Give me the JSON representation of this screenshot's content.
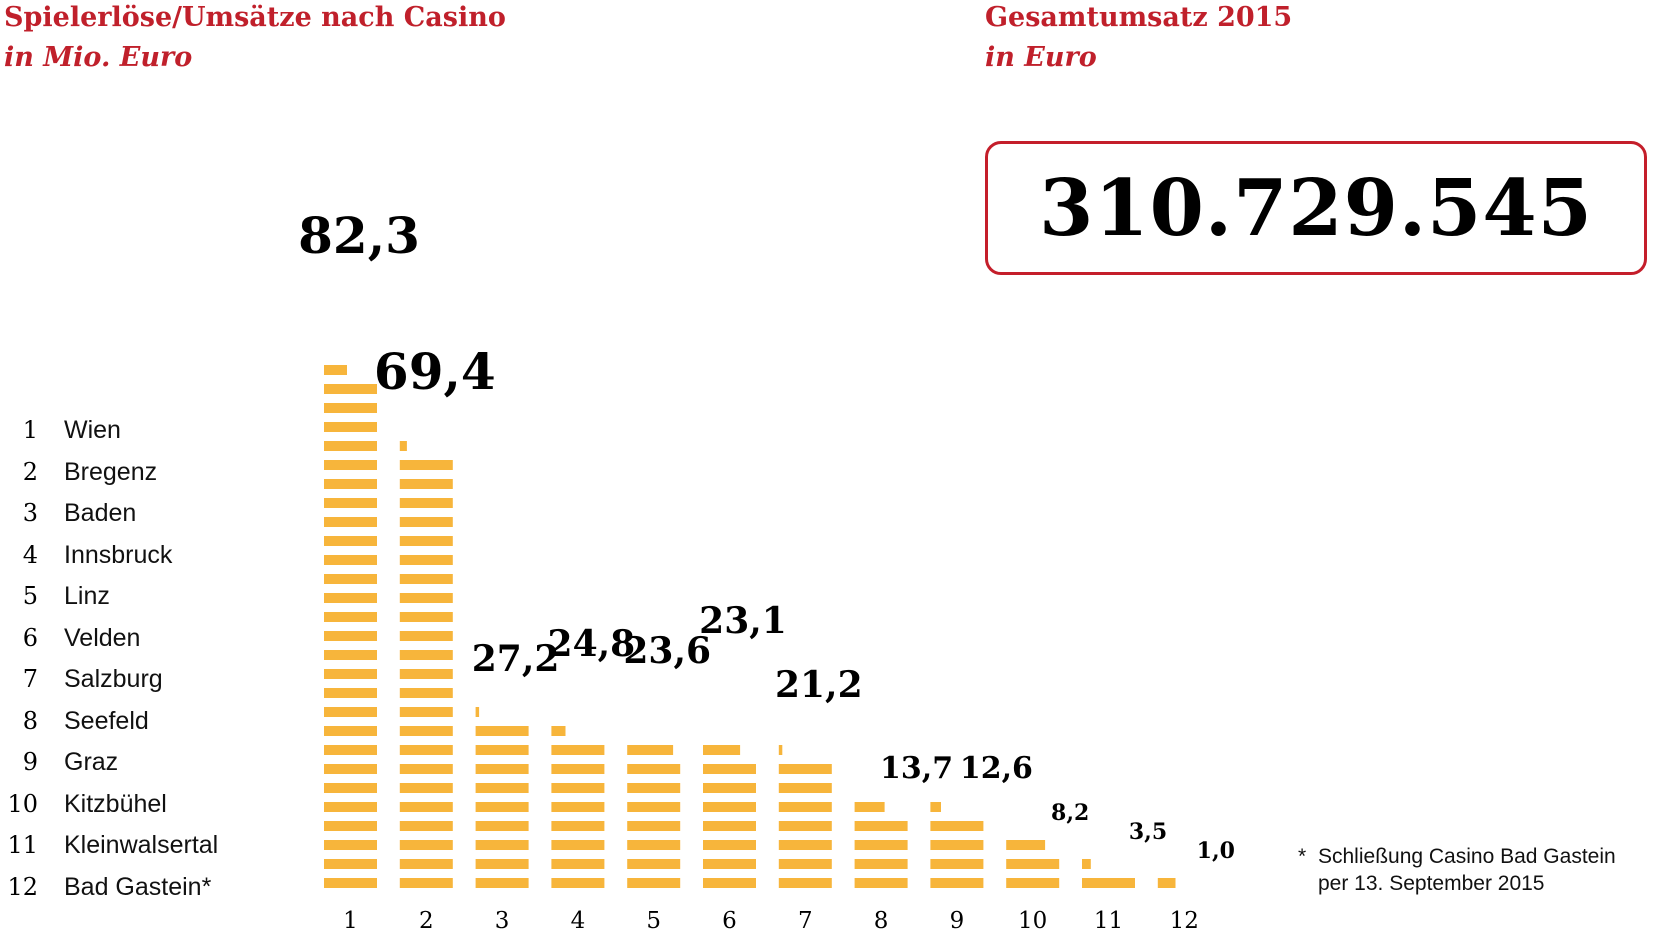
{
  "left_panel": {
    "title": "Spielerlöse/Umsätze nach Casino",
    "subtitle": "in Mio. Euro"
  },
  "right_panel": {
    "title": "Gesamtumsatz 2015",
    "subtitle": "in Euro",
    "total_value": "310.729.545"
  },
  "legend": [
    {
      "num": "1",
      "name": "Wien"
    },
    {
      "num": "2",
      "name": "Bregenz"
    },
    {
      "num": "3",
      "name": "Baden"
    },
    {
      "num": "4",
      "name": "Innsbruck"
    },
    {
      "num": "5",
      "name": "Linz"
    },
    {
      "num": "6",
      "name": "Velden"
    },
    {
      "num": "7",
      "name": "Salzburg"
    },
    {
      "num": "8",
      "name": "Seefeld"
    },
    {
      "num": "9",
      "name": "Graz"
    },
    {
      "num": "10",
      "name": "Kitzbühel"
    },
    {
      "num": "11",
      "name": "Kleinwalsertal"
    },
    {
      "num": "12",
      "name": "Bad Gastein*"
    }
  ],
  "footnote": {
    "marker": "*",
    "line1": "Schließung Casino Bad Gastein",
    "line2": "per 13. September 2015"
  },
  "colors": {
    "accent_red": "#c0202b",
    "bar_orange": "#f7b53b",
    "text": "#000000"
  },
  "chart_data": {
    "type": "bar",
    "style": "stacked-segment bars",
    "categories": [
      "1",
      "2",
      "3",
      "4",
      "5",
      "6",
      "7",
      "8",
      "9",
      "10",
      "11",
      "12"
    ],
    "values": [
      82.3,
      69.4,
      27.2,
      24.8,
      23.6,
      23.1,
      21.2,
      13.7,
      12.6,
      8.2,
      3.5,
      1.0
    ],
    "value_labels": [
      "82,3",
      "69,4",
      "27,2",
      "24,8",
      "23,6",
      "23,1",
      "21,2",
      "13,7",
      "12,6",
      "8,2",
      "3,5",
      "1,0"
    ],
    "grid": false,
    "legend": "left"
  }
}
